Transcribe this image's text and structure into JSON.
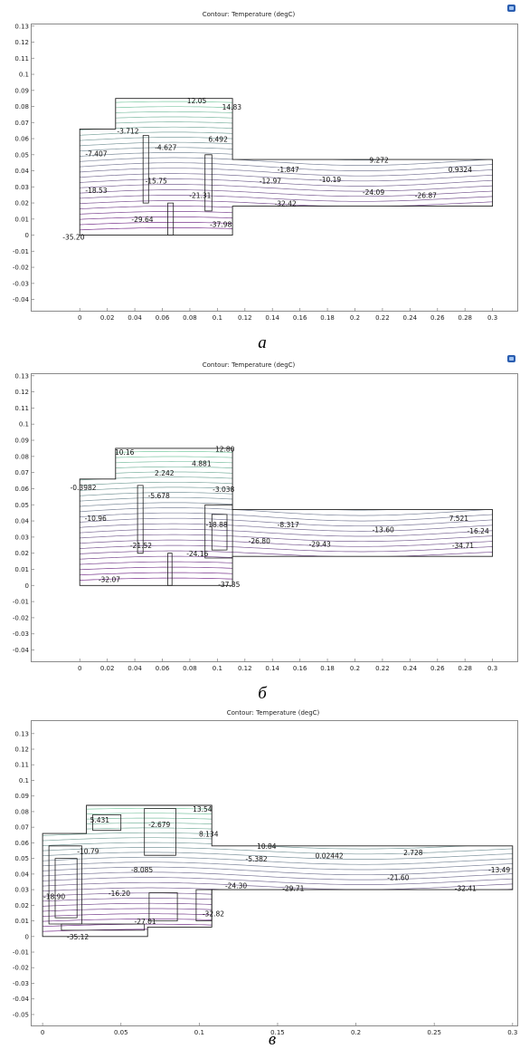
{
  "panels": [
    {
      "caption": "а",
      "title": "Contour: Temperature (degC)",
      "icon": "plot-window-icon",
      "chart_data": {
        "type": "contour",
        "title": "Contour: Temperature (degC)",
        "xlim": [
          -0.035,
          0.318
        ],
        "ylim": [
          -0.047,
          0.131
        ],
        "x_ticks": [
          0,
          0.02,
          0.04,
          0.06,
          0.08,
          0.1,
          0.12,
          0.14,
          0.16,
          0.18,
          0.2,
          0.22,
          0.24,
          0.26,
          0.28,
          0.3
        ],
        "x_tick_labels": [
          "0",
          "0.02",
          "0.04",
          "0.06",
          "0.08",
          "0.1",
          "0.12",
          "0.14",
          "0.16",
          "0.18",
          "0.2",
          "0.22",
          "0.24",
          "0.26",
          "0.28",
          "0.3"
        ],
        "y_ticks": [
          -0.04,
          -0.03,
          -0.02,
          -0.01,
          0,
          0.01,
          0.02,
          0.03,
          0.04,
          0.05,
          0.06,
          0.07,
          0.08,
          0.09,
          0.1,
          0.11,
          0.12,
          0.13
        ],
        "y_tick_labels": [
          "-0.04",
          "-0.03",
          "-0.02",
          "-0.01",
          "0",
          "0.01",
          "0.02",
          "0.03",
          "0.04",
          "0.05",
          "0.06",
          "0.07",
          "0.08",
          "0.09",
          "0.1",
          "0.11",
          "0.12",
          "0.13"
        ],
        "geometry": [
          [
            [
              0,
              0
            ],
            [
              0,
              0.066
            ],
            [
              0.026,
              0.066
            ],
            [
              0.026,
              0.085
            ],
            [
              0.111,
              0.085
            ],
            [
              0.111,
              0.047
            ],
            [
              0.3,
              0.047
            ],
            [
              0.3,
              0.018
            ],
            [
              0.111,
              0.018
            ],
            [
              0.111,
              0
            ],
            [
              0,
              0
            ]
          ],
          [
            [
              0.046,
              0.062
            ],
            [
              0.05,
              0.062
            ],
            [
              0.05,
              0.02
            ],
            [
              0.046,
              0.02
            ],
            [
              0.046,
              0.062
            ]
          ],
          [
            [
              0.091,
              0.05
            ],
            [
              0.096,
              0.05
            ],
            [
              0.096,
              0.015
            ],
            [
              0.091,
              0.015
            ],
            [
              0.091,
              0.05
            ]
          ],
          [
            [
              0.064,
              0.02
            ],
            [
              0.068,
              0.02
            ],
            [
              0.068,
              0
            ],
            [
              0.064,
              0
            ],
            [
              0.064,
              0.02
            ]
          ]
        ],
        "contour_labels": [
          {
            "text": "12.05",
            "x": 0.085,
            "y": 0.0835
          },
          {
            "text": "14.83",
            "x": 0.1105,
            "y": 0.0795
          },
          {
            "text": "-3.712",
            "x": 0.035,
            "y": 0.0645
          },
          {
            "text": "6.492",
            "x": 0.1005,
            "y": 0.0595
          },
          {
            "text": "-7.407",
            "x": 0.012,
            "y": 0.0505
          },
          {
            "text": "-4.627",
            "x": 0.0625,
            "y": 0.0545
          },
          {
            "text": "9.272",
            "x": 0.2175,
            "y": 0.0465
          },
          {
            "text": "0.9324",
            "x": 0.2765,
            "y": 0.0405
          },
          {
            "text": "-1.847",
            "x": 0.1515,
            "y": 0.0405
          },
          {
            "text": "-10.19",
            "x": 0.182,
            "y": 0.0345
          },
          {
            "text": "-15.75",
            "x": 0.0555,
            "y": 0.0335
          },
          {
            "text": "-12.97",
            "x": 0.1385,
            "y": 0.0335
          },
          {
            "text": "-18.53",
            "x": 0.012,
            "y": 0.0275
          },
          {
            "text": "-24.09",
            "x": 0.2135,
            "y": 0.0265
          },
          {
            "text": "-21.31",
            "x": 0.0875,
            "y": 0.0245
          },
          {
            "text": "-26.87",
            "x": 0.2515,
            "y": 0.0245
          },
          {
            "text": "-32.42",
            "x": 0.1495,
            "y": 0.0195
          },
          {
            "text": "-29.64",
            "x": 0.0455,
            "y": 0.0095
          },
          {
            "text": "-37.98",
            "x": 0.1025,
            "y": 0.0065
          },
          {
            "text": "-35.20",
            "x": -0.0045,
            "y": -0.0015
          }
        ]
      }
    },
    {
      "caption": "б",
      "title": "Contour: Temperature (degC)",
      "icon": "plot-window-icon",
      "chart_data": {
        "type": "contour",
        "title": "Contour: Temperature (degC)",
        "xlim": [
          -0.035,
          0.318
        ],
        "ylim": [
          -0.047,
          0.131
        ],
        "x_ticks": [
          0,
          0.02,
          0.04,
          0.06,
          0.08,
          0.1,
          0.12,
          0.14,
          0.16,
          0.18,
          0.2,
          0.22,
          0.24,
          0.26,
          0.28,
          0.3
        ],
        "x_tick_labels": [
          "0",
          "0.02",
          "0.04",
          "0.06",
          "0.08",
          "0.1",
          "0.12",
          "0.14",
          "0.16",
          "0.18",
          "0.2",
          "0.22",
          "0.24",
          "0.26",
          "0.28",
          "0.3"
        ],
        "y_ticks": [
          -0.04,
          -0.03,
          -0.02,
          -0.01,
          0,
          0.01,
          0.02,
          0.03,
          0.04,
          0.05,
          0.06,
          0.07,
          0.08,
          0.09,
          0.1,
          0.11,
          0.12,
          0.13
        ],
        "y_tick_labels": [
          "-0.04",
          "-0.03",
          "-0.02",
          "-0.01",
          "0",
          "0.01",
          "0.02",
          "0.03",
          "0.04",
          "0.05",
          "0.06",
          "0.07",
          "0.08",
          "0.09",
          "0.1",
          "0.11",
          "0.12",
          "0.13"
        ],
        "geometry": [
          [
            [
              0,
              0
            ],
            [
              0,
              0.066
            ],
            [
              0.026,
              0.066
            ],
            [
              0.026,
              0.085
            ],
            [
              0.111,
              0.085
            ],
            [
              0.111,
              0.047
            ],
            [
              0.3,
              0.047
            ],
            [
              0.3,
              0.018
            ],
            [
              0.111,
              0.018
            ],
            [
              0.111,
              0
            ],
            [
              0,
              0
            ]
          ],
          [
            [
              0.042,
              0.062
            ],
            [
              0.046,
              0.062
            ],
            [
              0.046,
              0.02
            ],
            [
              0.042,
              0.02
            ],
            [
              0.042,
              0.062
            ]
          ],
          [
            [
              0.091,
              0.05
            ],
            [
              0.111,
              0.05
            ],
            [
              0.111,
              0.017
            ],
            [
              0.091,
              0.017
            ],
            [
              0.091,
              0.05
            ]
          ],
          [
            [
              0.096,
              0.044
            ],
            [
              0.107,
              0.044
            ],
            [
              0.107,
              0.022
            ],
            [
              0.096,
              0.022
            ],
            [
              0.096,
              0.044
            ]
          ],
          [
            [
              0.064,
              0.02
            ],
            [
              0.067,
              0.02
            ],
            [
              0.067,
              0
            ],
            [
              0.064,
              0
            ],
            [
              0.064,
              0.02
            ]
          ]
        ],
        "contour_labels": [
          {
            "text": "10.16",
            "x": 0.0325,
            "y": 0.0825
          },
          {
            "text": "12.80",
            "x": 0.1055,
            "y": 0.0845
          },
          {
            "text": "4.881",
            "x": 0.0885,
            "y": 0.0755
          },
          {
            "text": "2.242",
            "x": 0.0615,
            "y": 0.0695
          },
          {
            "text": "-0.3982",
            "x": 0.0025,
            "y": 0.0605
          },
          {
            "text": "-5.678",
            "x": 0.0575,
            "y": 0.0555
          },
          {
            "text": "-3.038",
            "x": 0.1045,
            "y": 0.0595
          },
          {
            "text": "-10.96",
            "x": 0.0115,
            "y": 0.0415
          },
          {
            "text": "7.521",
            "x": 0.2755,
            "y": 0.0415
          },
          {
            "text": "-16.24",
            "x": 0.2895,
            "y": 0.0335
          },
          {
            "text": "-8.317",
            "x": 0.1515,
            "y": 0.0375
          },
          {
            "text": "-18.88",
            "x": 0.0995,
            "y": 0.0375
          },
          {
            "text": "-13.60",
            "x": 0.2205,
            "y": 0.0345
          },
          {
            "text": "-34.71",
            "x": 0.2785,
            "y": 0.0245
          },
          {
            "text": "-26.80",
            "x": 0.1305,
            "y": 0.0275
          },
          {
            "text": "-29.43",
            "x": 0.1745,
            "y": 0.0255
          },
          {
            "text": "-21.52",
            "x": 0.0445,
            "y": 0.0245
          },
          {
            "text": "-24.16",
            "x": 0.0855,
            "y": 0.0195
          },
          {
            "text": "-32.07",
            "x": 0.0215,
            "y": 0.0035
          },
          {
            "text": "-37.35",
            "x": 0.1085,
            "y": 0.0005
          }
        ]
      }
    },
    {
      "caption": "в",
      "title": "Contour: Temperature (degC)",
      "icon": "",
      "chart_data": {
        "type": "contour",
        "title": "Contour: Temperature (degC)",
        "xlim": [
          -0.007,
          0.303
        ],
        "ylim": [
          -0.057,
          0.138
        ],
        "x_ticks": [
          0,
          0.05,
          0.1,
          0.15,
          0.2,
          0.25,
          0.3
        ],
        "x_tick_labels": [
          "0",
          "0.05",
          "0.1",
          "0.15",
          "0.2",
          "0.25",
          "0.3"
        ],
        "y_ticks": [
          -0.05,
          -0.04,
          -0.03,
          -0.02,
          -0.01,
          0,
          0.01,
          0.02,
          0.03,
          0.04,
          0.05,
          0.06,
          0.07,
          0.08,
          0.09,
          0.1,
          0.11,
          0.12,
          0.13
        ],
        "y_tick_labels": [
          "-0.05",
          "-0.04",
          "-0.03",
          "-0.02",
          "-0.01",
          "0",
          "0.01",
          "0.02",
          "0.03",
          "0.04",
          "0.05",
          "0.06",
          "0.07",
          "0.08",
          "0.09",
          "0.1",
          "0.11",
          "0.12",
          "0.13"
        ],
        "geometry": [
          [
            [
              0,
              0
            ],
            [
              0,
              0.066
            ],
            [
              0.028,
              0.066
            ],
            [
              0.028,
              0.084
            ],
            [
              0.108,
              0.084
            ],
            [
              0.108,
              0.058
            ],
            [
              0.3,
              0.058
            ],
            [
              0.3,
              0.03
            ],
            [
              0.108,
              0.03
            ],
            [
              0.108,
              0.006
            ],
            [
              0.067,
              0.006
            ],
            [
              0.067,
              0
            ],
            [
              0,
              0
            ]
          ],
          [
            [
              0.004,
              0.058
            ],
            [
              0.025,
              0.058
            ],
            [
              0.025,
              0.008
            ],
            [
              0.004,
              0.008
            ],
            [
              0.004,
              0.058
            ]
          ],
          [
            [
              0.008,
              0.05
            ],
            [
              0.022,
              0.05
            ],
            [
              0.022,
              0.012
            ],
            [
              0.008,
              0.012
            ],
            [
              0.008,
              0.05
            ]
          ],
          [
            [
              0.032,
              0.078
            ],
            [
              0.05,
              0.078
            ],
            [
              0.05,
              0.068
            ],
            [
              0.032,
              0.068
            ],
            [
              0.032,
              0.078
            ]
          ],
          [
            [
              0.065,
              0.082
            ],
            [
              0.085,
              0.082
            ],
            [
              0.085,
              0.052
            ],
            [
              0.065,
              0.052
            ],
            [
              0.065,
              0.082
            ]
          ],
          [
            [
              0.068,
              0.028
            ],
            [
              0.086,
              0.028
            ],
            [
              0.086,
              0.01
            ],
            [
              0.068,
              0.01
            ],
            [
              0.068,
              0.028
            ]
          ],
          [
            [
              0.098,
              0.03
            ],
            [
              0.108,
              0.03
            ],
            [
              0.108,
              0.01
            ],
            [
              0.098,
              0.01
            ],
            [
              0.098,
              0.03
            ]
          ],
          [
            [
              0.012,
              0.004
            ],
            [
              0.065,
              0.004
            ],
            [
              0.065,
              0.008
            ],
            [
              0.012,
              0.008
            ],
            [
              0.012,
              0.004
            ]
          ]
        ],
        "contour_labels": [
          {
            "text": "13.54",
            "x": 0.102,
            "y": 0.0815
          },
          {
            "text": "5.431",
            "x": 0.0365,
            "y": 0.0745
          },
          {
            "text": "-2.679",
            "x": 0.0745,
            "y": 0.0715
          },
          {
            "text": "8.134",
            "x": 0.106,
            "y": 0.0655
          },
          {
            "text": "10.84",
            "x": 0.143,
            "y": 0.0575
          },
          {
            "text": "-10.79",
            "x": 0.029,
            "y": 0.0545
          },
          {
            "text": "0.02442",
            "x": 0.183,
            "y": 0.0515
          },
          {
            "text": "2.728",
            "x": 0.2365,
            "y": 0.0535
          },
          {
            "text": "-5.382",
            "x": 0.1365,
            "y": 0.0495
          },
          {
            "text": "-8.085",
            "x": 0.0635,
            "y": 0.0425
          },
          {
            "text": "-13.49",
            "x": 0.2915,
            "y": 0.0425
          },
          {
            "text": "-21.60",
            "x": 0.227,
            "y": 0.0375
          },
          {
            "text": "-16.20",
            "x": 0.049,
            "y": 0.0275
          },
          {
            "text": "-18.90",
            "x": 0.0075,
            "y": 0.0255
          },
          {
            "text": "-24.30",
            "x": 0.1235,
            "y": 0.0325
          },
          {
            "text": "-29.71",
            "x": 0.16,
            "y": 0.0305
          },
          {
            "text": "-32.41",
            "x": 0.27,
            "y": 0.0305
          },
          {
            "text": "-32.82",
            "x": 0.109,
            "y": 0.0145
          },
          {
            "text": "-27.01",
            "x": 0.0655,
            "y": 0.0095
          },
          {
            "text": "-35.12",
            "x": 0.0225,
            "y": -0.0005
          }
        ]
      }
    }
  ],
  "colors": {
    "frame": "#8a8a8a",
    "geometry": "#1e1e1e",
    "warm": "#7fd3a6",
    "cold": "#7a2a8c",
    "icon": "#2a5db0"
  }
}
